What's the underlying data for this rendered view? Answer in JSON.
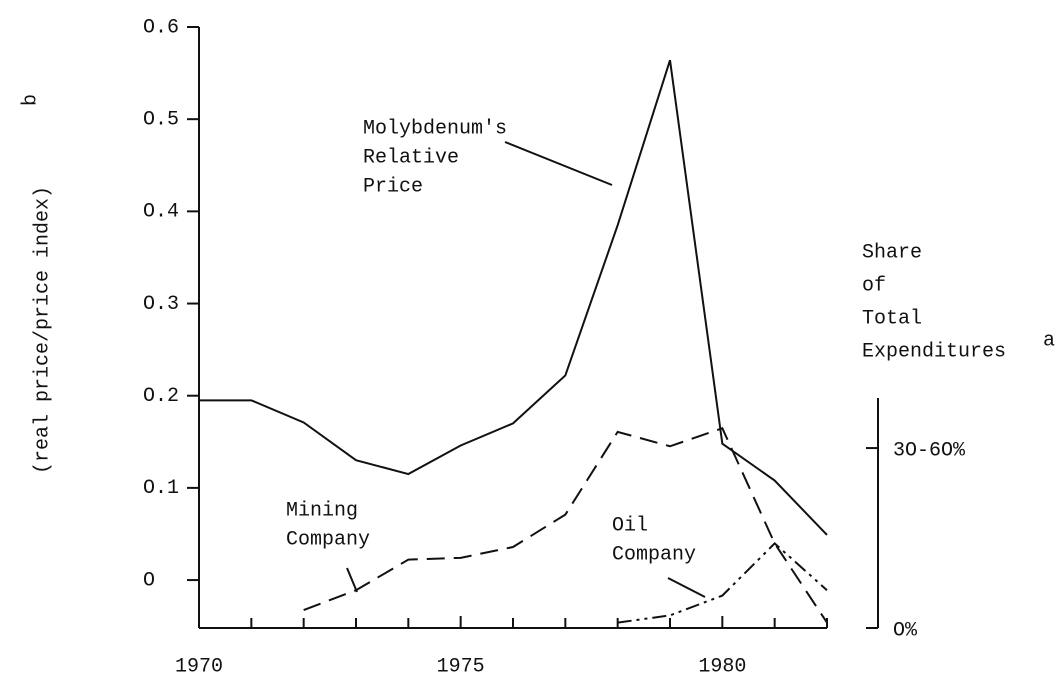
{
  "chart_data": {
    "type": "line",
    "ylabel": "(real price/price index)",
    "ylabel_superscript": "b",
    "y2label": [
      "Share",
      "of",
      "Total",
      "Expenditures"
    ],
    "y2label_superscript": "a",
    "x": [
      1970,
      1971,
      1972,
      1973,
      1974,
      1975,
      1976,
      1977,
      1978,
      1979,
      1980,
      1981,
      1982
    ],
    "xlim": [
      1970,
      1982
    ],
    "xticks": [
      1970,
      1975,
      1980
    ],
    "xticks_minor": [
      1971,
      1972,
      1973,
      1974,
      1976,
      1977,
      1978,
      1979,
      1981,
      1982
    ],
    "ylim": [
      -0.052,
      0.6
    ],
    "yticks": [
      {
        "value": 0,
        "label": "O"
      },
      {
        "value": 0.1,
        "label": "O.1"
      },
      {
        "value": 0.2,
        "label": "O.2"
      },
      {
        "value": 0.3,
        "label": "O.3"
      },
      {
        "value": 0.4,
        "label": "O.4"
      },
      {
        "value": 0.5,
        "label": "O.5"
      },
      {
        "value": 0.6,
        "label": "O.6"
      }
    ],
    "y2lim": [
      0,
      3.34
    ],
    "y2ticks": [
      {
        "value": 0,
        "label": "O%"
      },
      {
        "value": 1,
        "label": "3O-6O%"
      }
    ],
    "series": [
      {
        "name": [
          "Molybdenum's",
          "Relative",
          "Price"
        ],
        "color": "#000000",
        "style": "solid",
        "values": [
          0.195,
          0.195,
          0.171,
          0.13,
          0.115,
          0.146,
          0.17,
          0.222,
          0.385,
          0.564,
          0.148,
          0.108,
          0.049
        ]
      },
      {
        "name": [
          "Mining",
          "Company"
        ],
        "color": "#000000",
        "style": "dashed",
        "axis": "y2",
        "values": [
          null,
          null,
          0.1,
          0.21,
          0.38,
          0.39,
          0.45,
          0.63,
          1.09,
          1.01,
          1.11,
          0.47,
          0.03
        ]
      },
      {
        "name": [
          "Oil",
          "Company"
        ],
        "color": "#000000",
        "style": "dashdotdot",
        "axis": "y2",
        "values": [
          null,
          null,
          null,
          null,
          null,
          null,
          null,
          null,
          0.03,
          0.07,
          0.18,
          0.47,
          0.21
        ]
      }
    ]
  }
}
